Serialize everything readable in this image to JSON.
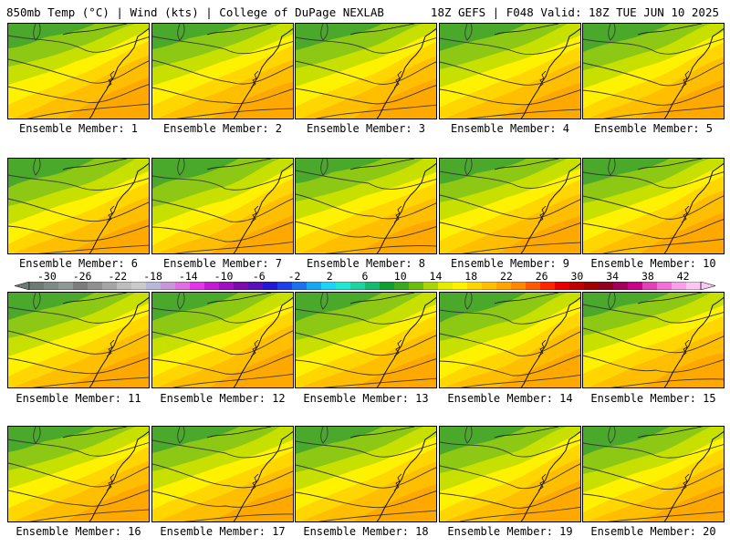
{
  "header": {
    "left": "850mb Temp (°C) | Wind (kts) | College of DuPage NEXLAB",
    "right": "18Z GEFS | F048 Valid: 18Z TUE JUN 10 2025"
  },
  "caption_prefix": "Ensemble Member: ",
  "members": [
    "1",
    "2",
    "3",
    "4",
    "5",
    "6",
    "7",
    "8",
    "9",
    "10",
    "11",
    "12",
    "13",
    "14",
    "15",
    "16",
    "17",
    "18",
    "19",
    "20"
  ],
  "colorbar": {
    "tick_labels": [
      "-30",
      "-26",
      "-22",
      "-18",
      "-14",
      "-10",
      "-6",
      "-2",
      "2",
      "6",
      "10",
      "14",
      "18",
      "22",
      "26",
      "30",
      "34",
      "38",
      "42"
    ],
    "min": -32,
    "max": 44,
    "step": 2,
    "colors": [
      "#6e7a74",
      "#7f8a86",
      "#8e9995",
      "#7c7c7c",
      "#909090",
      "#a5a5a5",
      "#bdbdbd",
      "#cacaca",
      "#b8b8d8",
      "#c996d8",
      "#dd6fe0",
      "#e236e8",
      "#c21ad2",
      "#9e10c0",
      "#7b0cab",
      "#5a10b8",
      "#2418d2",
      "#1f40e8",
      "#1a70f0",
      "#18a6f2",
      "#1ed4f4",
      "#20e8d0",
      "#20d2a0",
      "#18b870",
      "#0ea030",
      "#3aa820",
      "#6cbc10",
      "#a8d408",
      "#e4ec00",
      "#fff200",
      "#ffd600",
      "#ffbe00",
      "#ffa400",
      "#ff8800",
      "#ff5a00",
      "#ff2400",
      "#e60000",
      "#c00000",
      "#a00000",
      "#900020",
      "#a0005a",
      "#c8008c",
      "#e040b8",
      "#f070d8",
      "#f8a0e8",
      "#fbc8f2"
    ]
  }
}
